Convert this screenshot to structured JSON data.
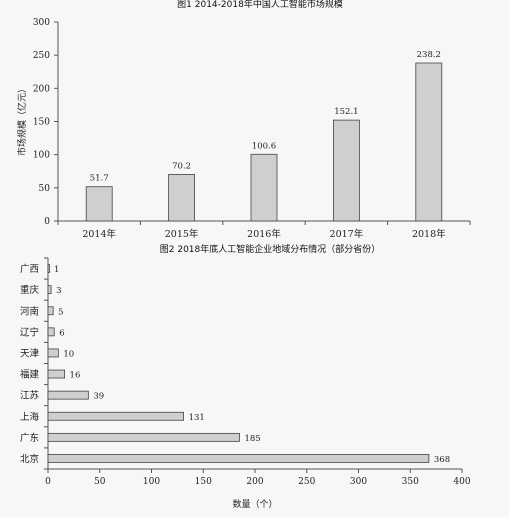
{
  "chart_data": [
    {
      "type": "bar",
      "title": "图1      2014-2018年中国人工智能市场规模",
      "ylabel": "市场规模（亿元）",
      "xlabel": "",
      "categories": [
        "2014年",
        "2015年",
        "2016年",
        "2017年",
        "2018年"
      ],
      "values": [
        51.7,
        70.2,
        100.6,
        152.1,
        238.2
      ],
      "data_labels": [
        "51.7",
        "70.2",
        "100.6",
        "152.1",
        "238.2"
      ],
      "ylim": [
        0,
        300
      ],
      "yticks": [
        "0",
        "50",
        "100",
        "150",
        "200",
        "250",
        "300"
      ],
      "grid": false,
      "bar_color": "#cfcfcf"
    },
    {
      "type": "bar",
      "orientation": "horizontal",
      "title": "图2      2018年底人工智能企业地域分布情况（部分省份）",
      "xlabel": "数量（个）",
      "ylabel": "",
      "categories": [
        "广西",
        "重庆",
        "河南",
        "辽宁",
        "天津",
        "福建",
        "江苏",
        "上海",
        "广东",
        "北京"
      ],
      "values": [
        1,
        3,
        5,
        6,
        10,
        16,
        39,
        131,
        185,
        368
      ],
      "data_labels": [
        "1",
        "3",
        "5",
        "6",
        "10",
        "16",
        "39",
        "131",
        "185",
        "368"
      ],
      "xlim": [
        0,
        400
      ],
      "xticks": [
        "0",
        "50",
        "100",
        "150",
        "200",
        "250",
        "300",
        "350",
        "400"
      ],
      "grid": false,
      "bar_color": "#cfcfcf"
    }
  ]
}
